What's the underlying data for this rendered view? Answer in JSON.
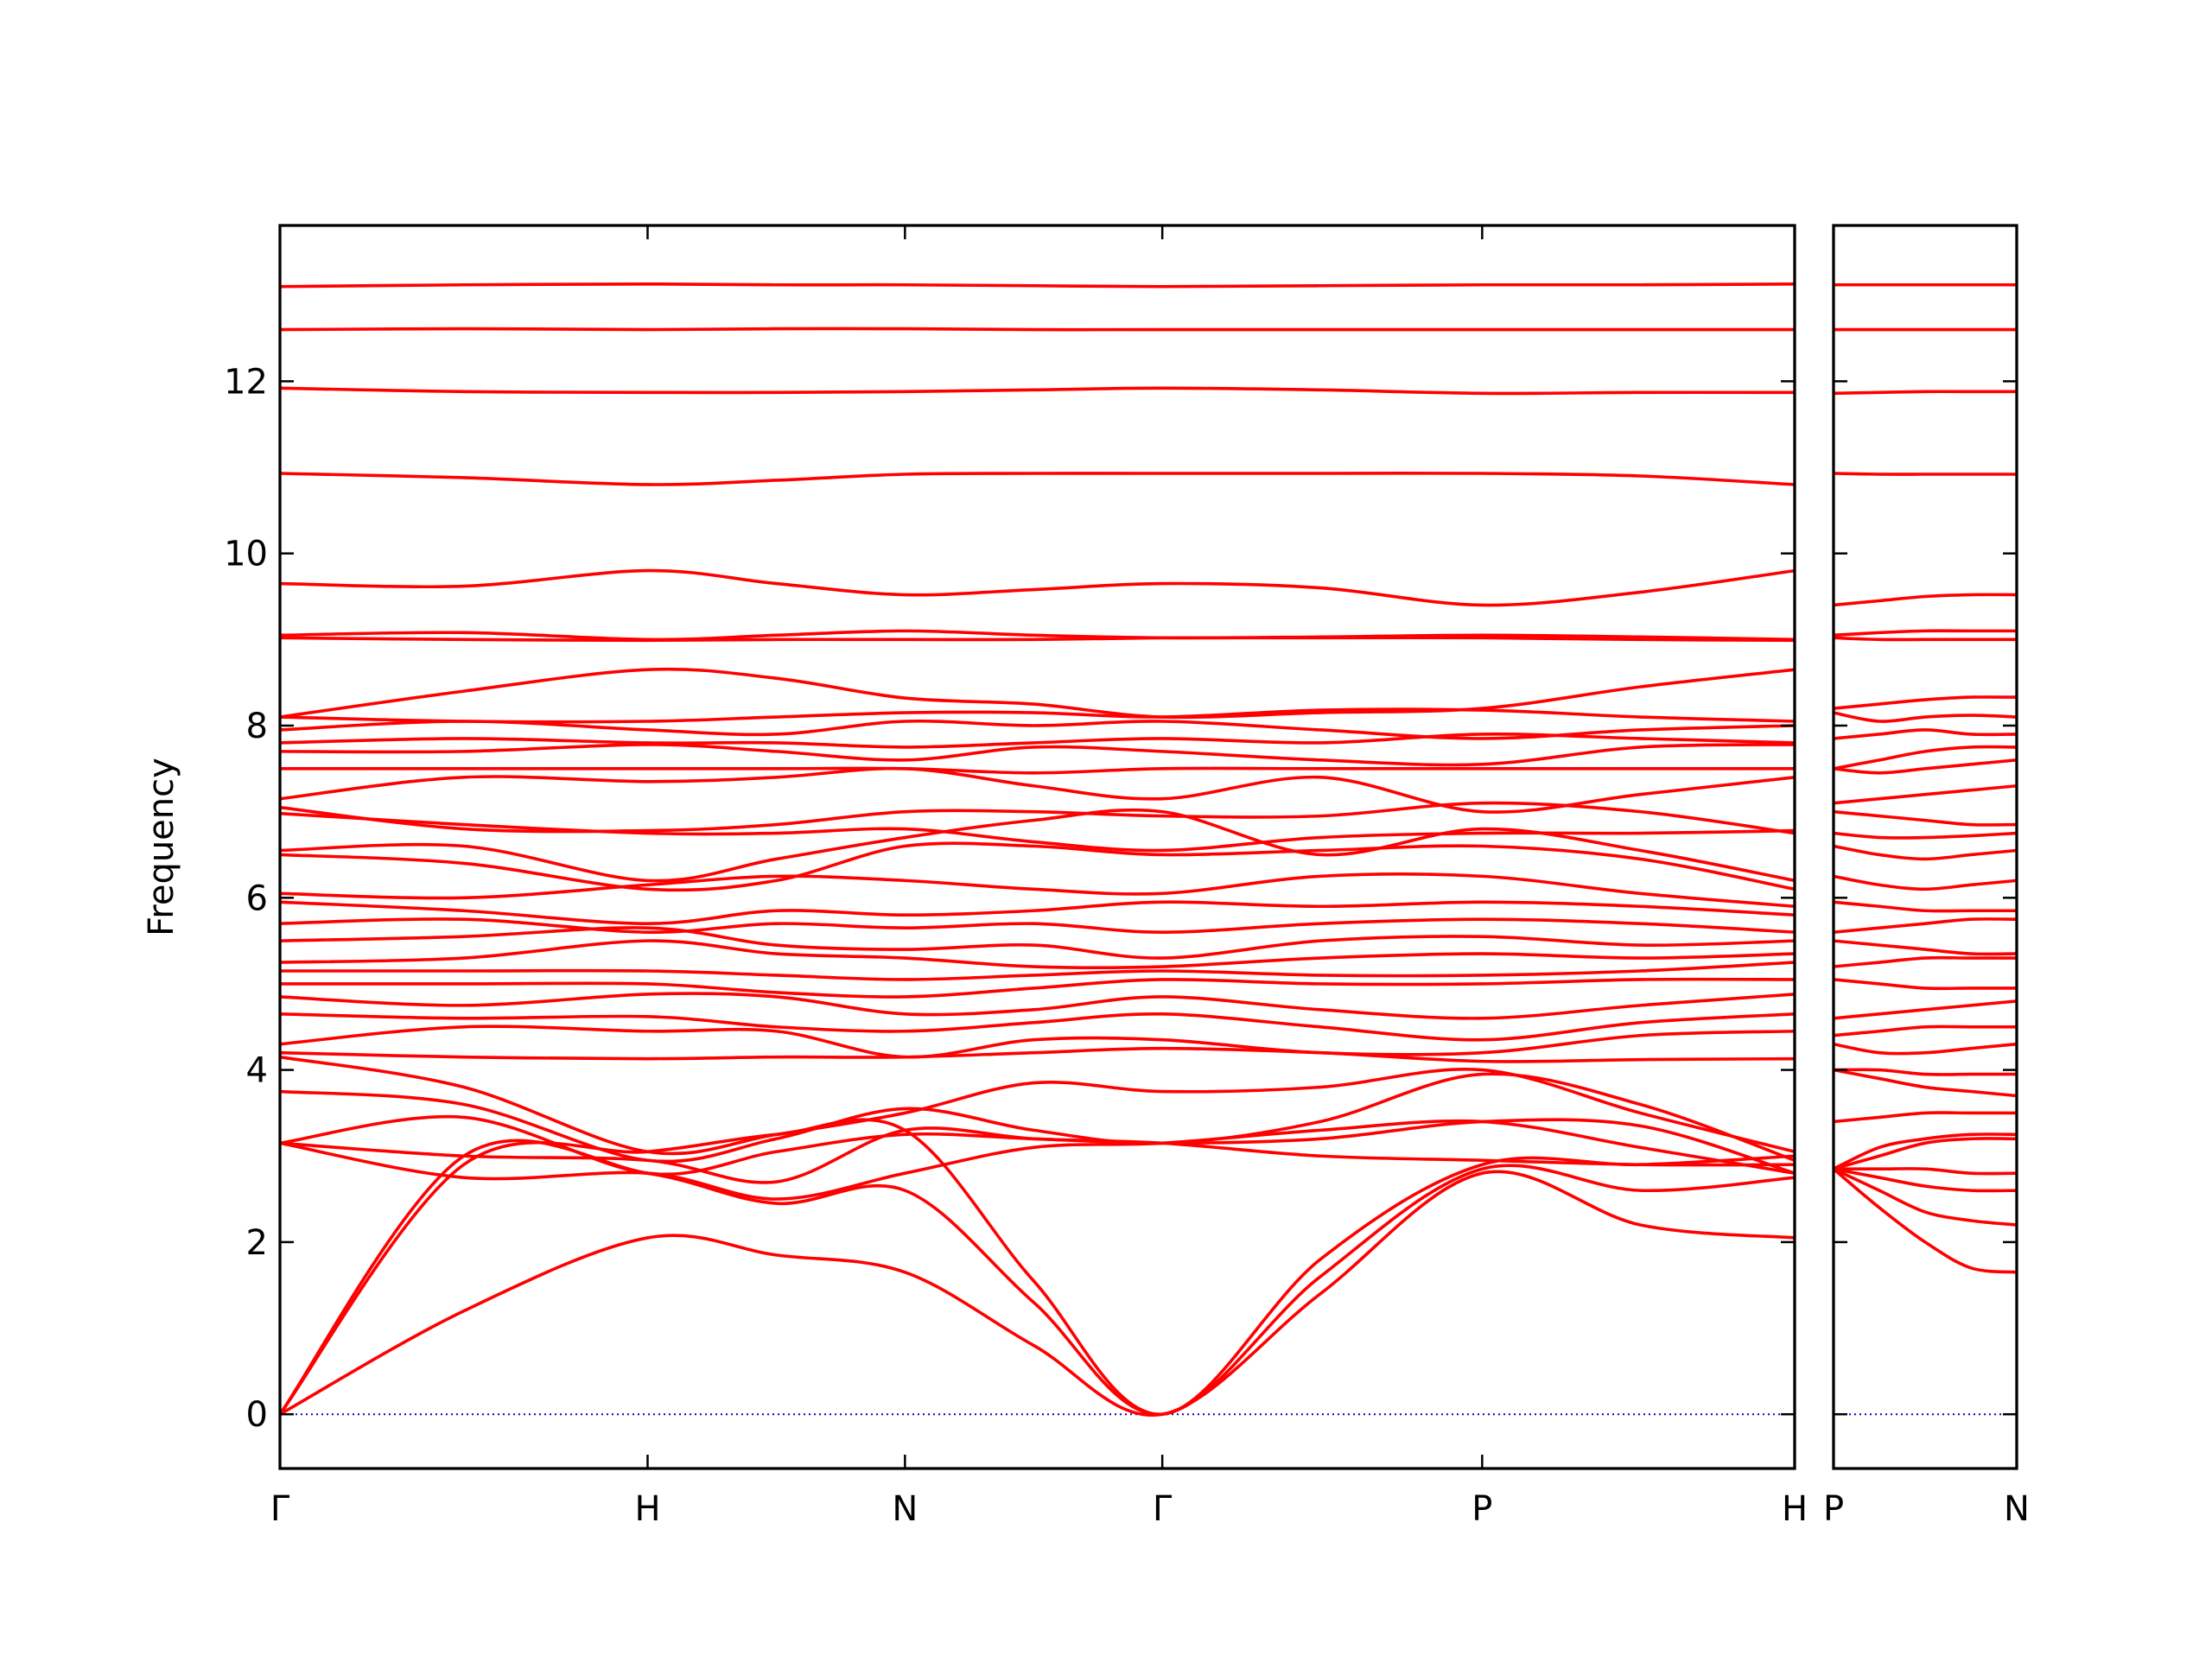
{
  "chart_data": [
    {
      "type": "line",
      "ylabel": "Frequency",
      "color": "#ff0000",
      "xlim": [
        0,
        4.12
      ],
      "ylim": [
        -0.63,
        13.81
      ],
      "xticks": [
        {
          "value": 0,
          "label": "Γ"
        },
        {
          "value": 1,
          "label": "H"
        },
        {
          "value": 1.7,
          "label": "N"
        },
        {
          "value": 2.4,
          "label": "Γ"
        },
        {
          "value": 3.27,
          "label": "P"
        },
        {
          "value": 4.12,
          "label": "H"
        }
      ],
      "yticks": [
        0,
        2,
        4,
        6,
        8,
        10,
        12
      ],
      "ytick_labels": true,
      "hline": 0,
      "hline_color": "#0000cd",
      "x": [
        0,
        0.5,
        1,
        1.35,
        1.7,
        2.05,
        2.4,
        2.83,
        3.27,
        3.7,
        4.12
      ],
      "bands": [
        [
          13.1,
          13.12,
          13.13,
          13.12,
          13.12,
          13.11,
          13.1,
          13.11,
          13.12,
          13.12,
          13.13
        ],
        [
          12.6,
          12.61,
          12.6,
          12.61,
          12.61,
          12.6,
          12.6,
          12.6,
          12.6,
          12.6,
          12.6
        ],
        [
          11.92,
          11.88,
          11.87,
          11.87,
          11.88,
          11.9,
          11.92,
          11.9,
          11.86,
          11.87,
          11.87
        ],
        [
          10.93,
          10.88,
          10.8,
          10.85,
          10.92,
          10.93,
          10.93,
          10.93,
          10.93,
          10.9,
          10.8
        ],
        [
          9.65,
          9.62,
          9.8,
          9.65,
          9.52,
          9.58,
          9.65,
          9.6,
          9.4,
          9.55,
          9.8
        ],
        [
          9.05,
          9.08,
          9.0,
          9.05,
          9.1,
          9.05,
          9.02,
          9.03,
          9.05,
          9.03,
          9.0
        ],
        [
          9.02,
          9.0,
          8.99,
          9.0,
          9.0,
          9.0,
          9.02,
          9.02,
          9.02,
          9.0,
          8.99
        ],
        [
          8.1,
          8.4,
          8.65,
          8.55,
          8.32,
          8.25,
          8.1,
          8.15,
          8.2,
          8.45,
          8.65
        ],
        [
          8.1,
          8.05,
          8.05,
          8.1,
          8.15,
          8.15,
          8.1,
          8.18,
          8.18,
          8.1,
          8.05
        ],
        [
          7.95,
          8.05,
          7.95,
          7.9,
          8.05,
          8.0,
          8.05,
          7.95,
          7.85,
          7.95,
          8.0
        ],
        [
          7.8,
          7.85,
          7.8,
          7.8,
          7.75,
          7.8,
          7.85,
          7.8,
          7.9,
          7.85,
          7.8
        ],
        [
          7.7,
          7.7,
          7.78,
          7.7,
          7.6,
          7.75,
          7.7,
          7.6,
          7.55,
          7.75,
          7.78
        ],
        [
          7.5,
          7.5,
          7.5,
          7.5,
          7.5,
          7.45,
          7.5,
          7.5,
          7.5,
          7.5,
          7.5
        ],
        [
          7.15,
          7.4,
          7.35,
          7.4,
          7.5,
          7.3,
          7.15,
          7.4,
          7.0,
          7.2,
          7.4
        ],
        [
          7.05,
          6.8,
          6.78,
          6.85,
          7.0,
          7.0,
          6.95,
          6.95,
          7.1,
          7.0,
          6.75
        ],
        [
          6.98,
          6.85,
          6.75,
          6.75,
          6.8,
          6.65,
          6.55,
          6.7,
          6.75,
          6.75,
          6.78
        ],
        [
          6.55,
          6.6,
          6.2,
          6.45,
          6.7,
          6.9,
          7.0,
          6.5,
          6.8,
          6.55,
          6.2
        ],
        [
          6.5,
          6.4,
          6.1,
          6.2,
          6.6,
          6.6,
          6.5,
          6.55,
          6.6,
          6.45,
          6.1
        ],
        [
          6.05,
          6.0,
          6.15,
          6.25,
          6.2,
          6.1,
          6.05,
          6.25,
          6.25,
          6.05,
          5.9
        ],
        [
          5.95,
          5.85,
          5.7,
          5.85,
          5.8,
          5.85,
          5.95,
          5.9,
          5.95,
          5.9,
          5.8
        ],
        [
          5.7,
          5.75,
          5.6,
          5.7,
          5.65,
          5.7,
          5.6,
          5.7,
          5.75,
          5.7,
          5.6
        ],
        [
          5.5,
          5.55,
          5.65,
          5.45,
          5.4,
          5.45,
          5.3,
          5.5,
          5.55,
          5.45,
          5.5
        ],
        [
          5.25,
          5.3,
          5.5,
          5.35,
          5.3,
          5.2,
          5.2,
          5.3,
          5.35,
          5.3,
          5.35
        ],
        [
          5.15,
          5.15,
          5.15,
          5.1,
          5.05,
          5.1,
          5.15,
          5.1,
          5.1,
          5.15,
          5.25
        ],
        [
          5.0,
          5.0,
          5.0,
          4.9,
          4.85,
          4.95,
          5.05,
          5.0,
          5.0,
          5.05,
          5.05
        ],
        [
          4.85,
          4.75,
          4.88,
          4.85,
          4.65,
          4.7,
          4.85,
          4.7,
          4.6,
          4.75,
          4.88
        ],
        [
          4.65,
          4.6,
          4.62,
          4.5,
          4.45,
          4.55,
          4.65,
          4.5,
          4.35,
          4.55,
          4.65
        ],
        [
          4.3,
          4.5,
          4.45,
          4.45,
          4.15,
          4.35,
          4.35,
          4.2,
          4.2,
          4.4,
          4.45
        ],
        [
          4.2,
          4.15,
          4.13,
          4.15,
          4.15,
          4.2,
          4.25,
          4.2,
          4.1,
          4.12,
          4.13
        ],
        [
          4.15,
          3.8,
          3.05,
          3.25,
          3.5,
          3.85,
          3.75,
          3.8,
          4.0,
          3.5,
          3.05
        ],
        [
          3.75,
          3.6,
          2.95,
          3.2,
          3.55,
          3.3,
          3.15,
          3.4,
          3.95,
          3.6,
          2.95
        ],
        [
          3.15,
          3.45,
          2.8,
          3.05,
          3.25,
          3.2,
          3.15,
          3.2,
          3.4,
          3.35,
          2.8
        ],
        [
          3.15,
          3.0,
          2.95,
          2.7,
          3.3,
          3.2,
          3.15,
          3.0,
          2.95,
          2.9,
          2.9
        ],
        [
          3.15,
          2.75,
          2.8,
          2.5,
          2.8,
          3.1,
          3.15,
          3.3,
          3.4,
          3.1,
          2.8
        ],
        [
          0,
          3.0,
          2.8,
          2.45,
          2.6,
          1.3,
          0,
          1.6,
          2.85,
          2.6,
          2.75
        ],
        [
          0,
          2.9,
          3.05,
          3.25,
          3.3,
          1.55,
          0,
          1.8,
          2.9,
          2.9,
          3.0
        ],
        [
          0,
          1.2,
          2.05,
          1.85,
          1.65,
          0.8,
          0,
          1.4,
          2.8,
          2.2,
          2.05
        ]
      ]
    },
    {
      "type": "line",
      "color": "#ff0000",
      "xlim": [
        0,
        0.5
      ],
      "ylim": [
        -0.63,
        13.81
      ],
      "xticks": [
        {
          "value": 0,
          "label": "P"
        },
        {
          "value": 0.5,
          "label": "N"
        }
      ],
      "yticks": [
        0,
        2,
        4,
        6,
        8,
        10,
        12
      ],
      "ytick_labels": false,
      "hline": 0,
      "hline_color": "#0000cd",
      "x": [
        0,
        0.125,
        0.25,
        0.375,
        0.5
      ],
      "bands": [
        [
          13.12,
          13.12,
          13.12,
          13.12,
          13.12
        ],
        [
          12.6,
          12.6,
          12.6,
          12.6,
          12.6
        ],
        [
          11.86,
          11.87,
          11.88,
          11.88,
          11.88
        ],
        [
          10.93,
          10.92,
          10.92,
          10.92,
          10.92
        ],
        [
          9.4,
          9.45,
          9.5,
          9.52,
          9.52
        ],
        [
          9.05,
          9.08,
          9.1,
          9.1,
          9.1
        ],
        [
          9.02,
          9.0,
          9.0,
          9.0,
          9.0
        ],
        [
          8.2,
          8.25,
          8.3,
          8.33,
          8.33
        ],
        [
          8.15,
          8.05,
          8.1,
          8.12,
          8.1
        ],
        [
          7.85,
          7.9,
          7.95,
          7.9,
          7.9
        ],
        [
          7.5,
          7.6,
          7.7,
          7.75,
          7.75
        ],
        [
          7.5,
          7.45,
          7.5,
          7.55,
          7.6
        ],
        [
          7.1,
          7.15,
          7.2,
          7.25,
          7.3
        ],
        [
          7.0,
          6.95,
          6.9,
          6.85,
          6.85
        ],
        [
          6.75,
          6.7,
          6.7,
          6.72,
          6.75
        ],
        [
          6.6,
          6.5,
          6.45,
          6.5,
          6.55
        ],
        [
          6.25,
          6.15,
          6.1,
          6.15,
          6.2
        ],
        [
          5.95,
          5.9,
          5.85,
          5.85,
          5.85
        ],
        [
          5.6,
          5.65,
          5.7,
          5.75,
          5.75
        ],
        [
          5.5,
          5.45,
          5.4,
          5.35,
          5.35
        ],
        [
          5.2,
          5.25,
          5.3,
          5.3,
          5.3
        ],
        [
          5.05,
          5.0,
          4.95,
          4.95,
          4.95
        ],
        [
          4.6,
          4.65,
          4.7,
          4.75,
          4.8
        ],
        [
          4.4,
          4.45,
          4.5,
          4.5,
          4.5
        ],
        [
          4.3,
          4.2,
          4.2,
          4.25,
          4.3
        ],
        [
          4.0,
          4.0,
          3.95,
          3.95,
          3.95
        ],
        [
          4.0,
          3.9,
          3.8,
          3.75,
          3.7
        ],
        [
          3.4,
          3.45,
          3.5,
          3.5,
          3.5
        ],
        [
          2.85,
          3.1,
          3.2,
          3.25,
          3.25
        ],
        [
          2.85,
          3.0,
          3.15,
          3.2,
          3.2
        ],
        [
          2.85,
          2.85,
          2.85,
          2.8,
          2.8
        ],
        [
          2.85,
          2.75,
          2.65,
          2.6,
          2.6
        ],
        [
          2.85,
          2.6,
          2.35,
          2.25,
          2.2
        ],
        [
          2.85,
          2.4,
          2.0,
          1.7,
          1.65
        ]
      ]
    }
  ]
}
